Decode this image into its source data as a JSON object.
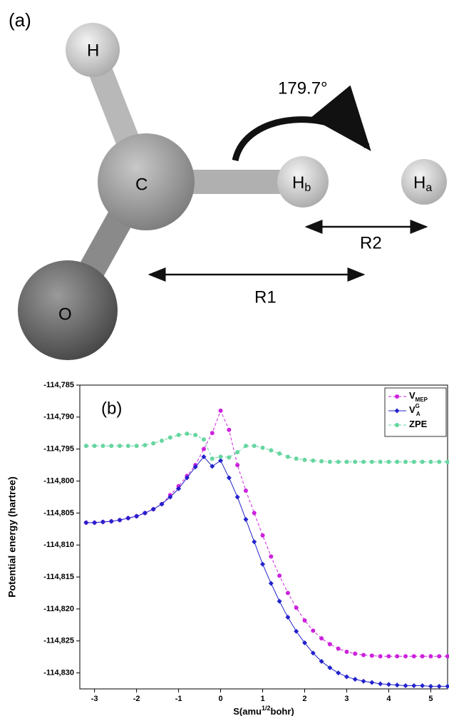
{
  "diagram": {
    "panel_label": "(a)",
    "angle_label": "179.7°",
    "atoms": [
      {
        "label": "H"
      },
      {
        "label": "C"
      },
      {
        "label": "O"
      },
      {
        "label": "H",
        "subscript": "b"
      },
      {
        "label": "H",
        "subscript": "a"
      }
    ],
    "distances": [
      "R1",
      "R2"
    ]
  },
  "chart_data": {
    "type": "line",
    "panel_label": "(b)",
    "x_label": [
      "S(amu",
      "1/2",
      "bohr)"
    ],
    "y_label": "Potential energy (hartree)",
    "x": [
      -3.2,
      -3.0,
      -2.8,
      -2.6,
      -2.4,
      -2.2,
      -2.0,
      -1.8,
      -1.6,
      -1.4,
      -1.2,
      -1.0,
      -0.8,
      -0.6,
      -0.4,
      -0.2,
      0,
      0.2,
      0.4,
      0.6,
      0.8,
      1.0,
      1.2,
      1.4,
      1.6,
      1.8,
      2.0,
      2.2,
      2.4,
      2.6,
      2.8,
      3.0,
      3.2,
      3.4,
      3.6,
      3.8,
      4.0,
      4.2,
      4.4,
      4.6,
      4.8,
      5.0,
      5.2,
      5.4
    ],
    "series": [
      {
        "name": "V",
        "subscript": "MEP",
        "color": "#cc22dd",
        "marker": "circle",
        "dashed": true,
        "values": [
          -114.8065,
          -114.8065,
          -114.8064,
          -114.8063,
          -114.8061,
          -114.8058,
          -114.8055,
          -114.805,
          -114.8044,
          -114.8036,
          -114.8022,
          -114.8008,
          -114.7992,
          -114.7975,
          -114.795,
          -114.7925,
          -114.789,
          -114.792,
          -114.7975,
          -114.8015,
          -114.805,
          -114.8085,
          -114.8118,
          -114.8148,
          -114.8175,
          -114.8198,
          -114.8218,
          -114.8234,
          -114.8246,
          -114.8255,
          -114.8262,
          -114.8267,
          -114.827,
          -114.8272,
          -114.8273,
          -114.8274,
          -114.8274,
          -114.8274,
          -114.8274,
          -114.8274,
          -114.8274,
          -114.8274,
          -114.8274,
          -114.8274
        ]
      },
      {
        "name": "V",
        "subscript": "A",
        "superscript": "G",
        "color": "#2222cc",
        "marker": "diamond",
        "dashed": false,
        "values": [
          -114.8065,
          -114.8065,
          -114.8064,
          -114.8063,
          -114.8061,
          -114.8058,
          -114.8055,
          -114.805,
          -114.8044,
          -114.8036,
          -114.8025,
          -114.8012,
          -114.7995,
          -114.7978,
          -114.7962,
          -114.7977,
          -114.7968,
          -114.7995,
          -114.8025,
          -114.806,
          -114.8095,
          -114.813,
          -114.816,
          -114.8188,
          -114.8213,
          -114.8235,
          -114.8253,
          -114.8269,
          -114.8282,
          -114.8292,
          -114.83,
          -114.8306,
          -114.831,
          -114.8313,
          -114.8315,
          -114.8317,
          -114.8318,
          -114.8319,
          -114.832,
          -114.832,
          -114.832,
          -114.8321,
          -114.8321,
          -114.8321
        ]
      },
      {
        "name": "ZPE",
        "color": "#66d6a0",
        "marker": "circle",
        "dashed": true,
        "values": [
          -114.7945,
          -114.7945,
          -114.7945,
          -114.7945,
          -114.7945,
          -114.7945,
          -114.7945,
          -114.7944,
          -114.7941,
          -114.7937,
          -114.7932,
          -114.7928,
          -114.7926,
          -114.7928,
          -114.7935,
          -114.7965,
          -114.7962,
          -114.7963,
          -114.7955,
          -114.7945,
          -114.7945,
          -114.7948,
          -114.7952,
          -114.7957,
          -114.7962,
          -114.7965,
          -114.7967,
          -114.7968,
          -114.7969,
          -114.797,
          -114.797,
          -114.797,
          -114.797,
          -114.797,
          -114.797,
          -114.797,
          -114.797,
          -114.797,
          -114.797,
          -114.797,
          -114.797,
          -114.797,
          -114.797,
          -114.797
        ]
      }
    ],
    "xlim": [
      -3.35,
      5.4
    ],
    "xticks": [
      -3,
      -2,
      -1,
      0,
      1,
      2,
      3,
      4,
      5
    ],
    "ylim": [
      -114.8325,
      -114.785
    ],
    "yticks": [
      {
        "value": -114.785,
        "label": "-114,785"
      },
      {
        "value": -114.79,
        "label": "-114,790"
      },
      {
        "value": -114.795,
        "label": "-114,795"
      },
      {
        "value": -114.8,
        "label": "-114,800"
      },
      {
        "value": -114.805,
        "label": "-114,805"
      },
      {
        "value": -114.81,
        "label": "-114,810"
      },
      {
        "value": -114.815,
        "label": "-114,815"
      },
      {
        "value": -114.82,
        "label": "-114,820"
      },
      {
        "value": -114.825,
        "label": "-114,825"
      },
      {
        "value": -114.83,
        "label": "-114,830"
      }
    ],
    "grid": false,
    "legend": "top-right"
  }
}
